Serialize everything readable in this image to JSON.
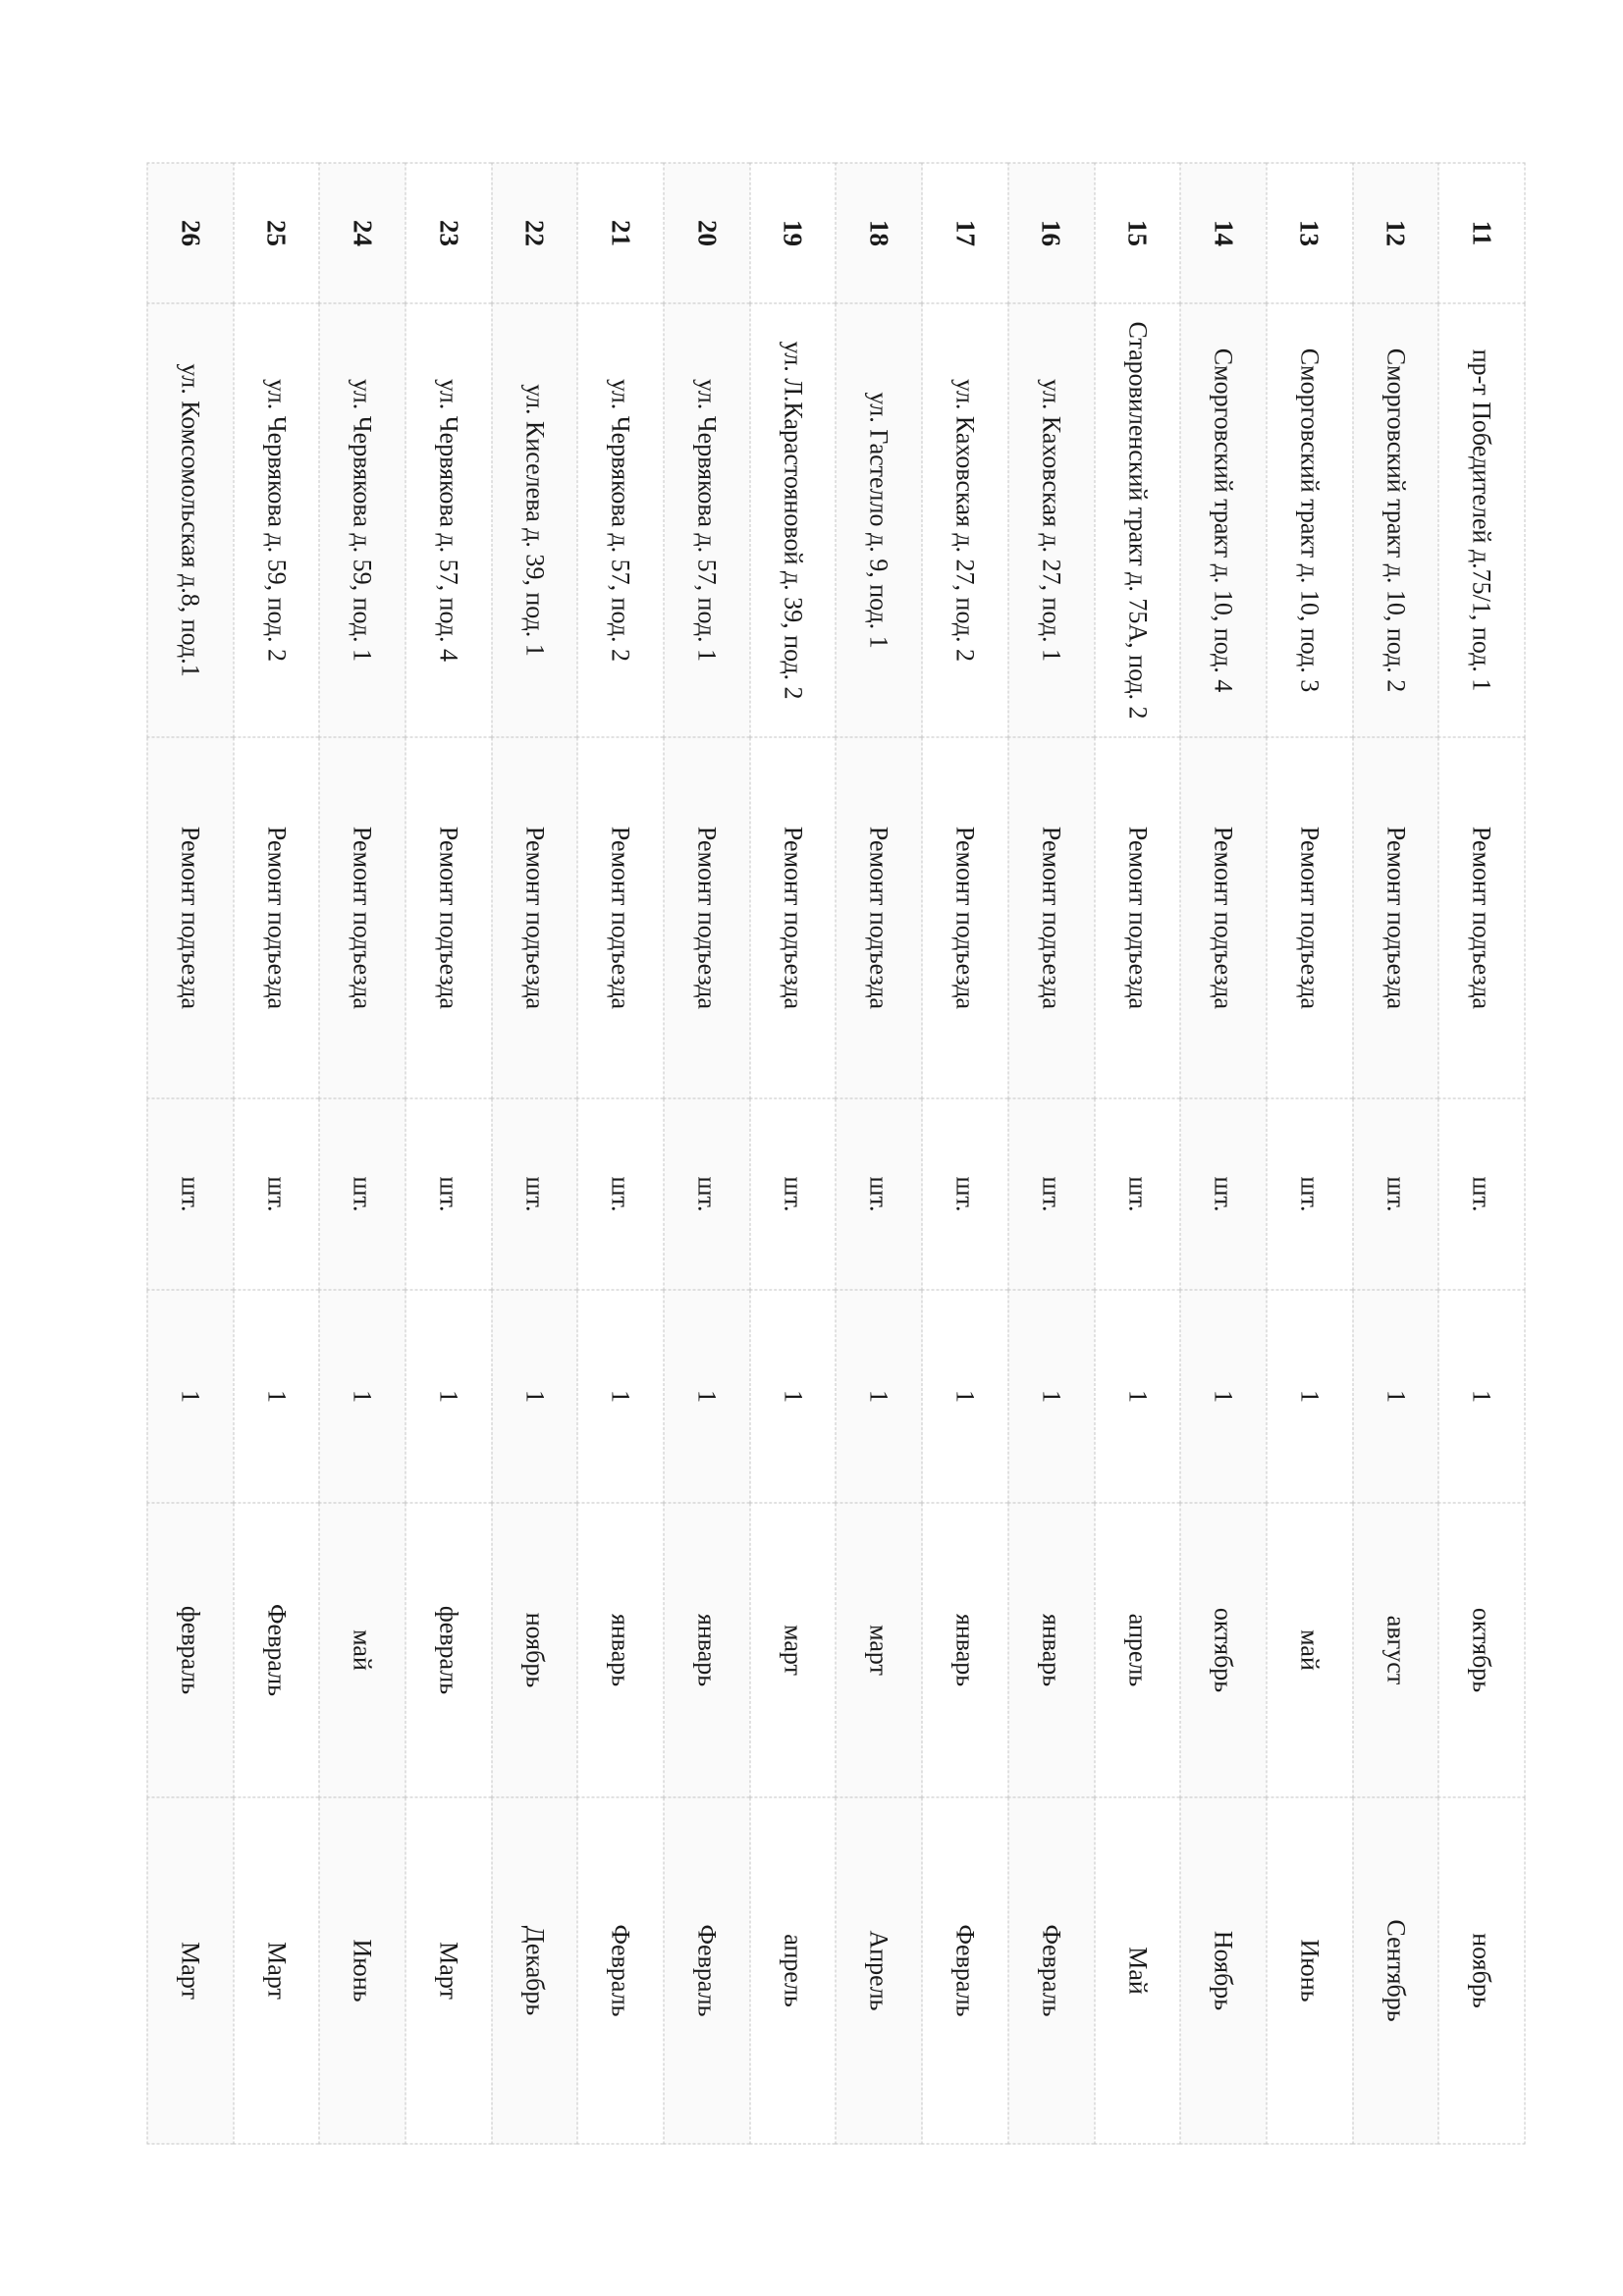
{
  "rows": [
    {
      "num": "11",
      "address": "пр-т Победителей д.75/1, под. 1",
      "work": "Ремонт подъезда",
      "unit": "шт.",
      "qty": "1",
      "start": "октябрь",
      "end": "ноябрь"
    },
    {
      "num": "12",
      "address": "Сморговский тракт д. 10, под. 2",
      "work": "Ремонт подъезда",
      "unit": "шт.",
      "qty": "1",
      "start": "август",
      "end": "Сентябрь"
    },
    {
      "num": "13",
      "address": "Сморговский тракт д. 10, под. 3",
      "work": "Ремонт подъезда",
      "unit": "шт.",
      "qty": "1",
      "start": "май",
      "end": "Июнь"
    },
    {
      "num": "14",
      "address": "Сморговский тракт д. 10, под. 4",
      "work": "Ремонт подъезда",
      "unit": "шт.",
      "qty": "1",
      "start": "октябрь",
      "end": "Ноябрь"
    },
    {
      "num": "15",
      "address": "Старовиленский тракт д. 75А, под. 2",
      "work": "Ремонт подъезда",
      "unit": "шт.",
      "qty": "1",
      "start": "апрель",
      "end": "Май"
    },
    {
      "num": "16",
      "address": "ул. Каховская д. 27, под. 1",
      "work": "Ремонт подъезда",
      "unit": "шт.",
      "qty": "1",
      "start": "январь",
      "end": "Февраль"
    },
    {
      "num": "17",
      "address": "ул. Каховская д. 27, под. 2",
      "work": "Ремонт подъезда",
      "unit": "шт.",
      "qty": "1",
      "start": "январь",
      "end": "Февраль"
    },
    {
      "num": "18",
      "address": "ул. Гастелло д. 9, под. 1",
      "work": "Ремонт подъезда",
      "unit": "шт.",
      "qty": "1",
      "start": "март",
      "end": "Апрель"
    },
    {
      "num": "19",
      "address": "ул. Л.Карастояновой д. 39, под. 2",
      "work": "Ремонт подъезда",
      "unit": "шт.",
      "qty": "1",
      "start": "март",
      "end": "апрель"
    },
    {
      "num": "20",
      "address": "ул. Червякова д. 57, под. 1",
      "work": "Ремонт подъезда",
      "unit": "шт.",
      "qty": "1",
      "start": "январь",
      "end": "Февраль"
    },
    {
      "num": "21",
      "address": "ул. Червякова д. 57, под. 2",
      "work": "Ремонт подъезда",
      "unit": "шт.",
      "qty": "1",
      "start": "январь",
      "end": "Февраль"
    },
    {
      "num": "22",
      "address": "ул. Киселева д. 39, под. 1",
      "work": "Ремонт подъезда",
      "unit": "шт.",
      "qty": "1",
      "start": "ноябрь",
      "end": "Декабрь"
    },
    {
      "num": "23",
      "address": "ул. Червякова д. 57, под. 4",
      "work": "Ремонт подъезда",
      "unit": "шт.",
      "qty": "1",
      "start": "февраль",
      "end": "Март"
    },
    {
      "num": "24",
      "address": "ул. Червякова д. 59, под. 1",
      "work": "Ремонт подъезда",
      "unit": "шт.",
      "qty": "1",
      "start": "май",
      "end": "Июнь"
    },
    {
      "num": "25",
      "address": "ул. Червякова д. 59, под. 2",
      "work": "Ремонт подъезда",
      "unit": "шт.",
      "qty": "1",
      "start": "Февраль",
      "end": "Март"
    },
    {
      "num": "26",
      "address": "ул. Комсомольская д.8, под.1",
      "work": "Ремонт подъезда",
      "unit": "шт.",
      "qty": "1",
      "start": "февраль",
      "end": "Март"
    }
  ]
}
